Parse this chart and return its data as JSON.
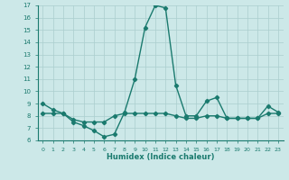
{
  "xlabel": "Humidex (Indice chaleur)",
  "x_values": [
    0,
    1,
    2,
    3,
    4,
    5,
    6,
    7,
    8,
    9,
    10,
    11,
    12,
    13,
    14,
    15,
    16,
    17,
    18,
    19,
    20,
    21,
    22,
    23
  ],
  "line1_y": [
    9.0,
    8.5,
    8.2,
    7.5,
    7.2,
    6.8,
    6.3,
    6.5,
    8.3,
    11.0,
    15.2,
    17.0,
    16.8,
    10.5,
    8.0,
    8.0,
    9.2,
    9.5,
    7.8,
    7.8,
    7.8,
    7.8,
    8.8,
    8.3
  ],
  "line2_y": [
    8.2,
    8.2,
    8.2,
    7.7,
    7.5,
    7.5,
    7.5,
    8.0,
    8.2,
    8.2,
    8.2,
    8.2,
    8.2,
    8.0,
    7.8,
    7.8,
    8.0,
    8.0,
    7.8,
    7.8,
    7.8,
    7.8,
    8.2,
    8.2
  ],
  "ylim": [
    6,
    17
  ],
  "xlim": [
    -0.5,
    23.5
  ],
  "yticks": [
    6,
    7,
    8,
    9,
    10,
    11,
    12,
    13,
    14,
    15,
    16,
    17
  ],
  "xticks": [
    0,
    1,
    2,
    3,
    4,
    5,
    6,
    7,
    8,
    9,
    10,
    11,
    12,
    13,
    14,
    15,
    16,
    17,
    18,
    19,
    20,
    21,
    22,
    23
  ],
  "line_color": "#1a7a6e",
  "bg_color": "#cce8e8",
  "grid_color": "#aacece",
  "marker": "D",
  "marker_size": 2.2,
  "line_width": 1.0
}
